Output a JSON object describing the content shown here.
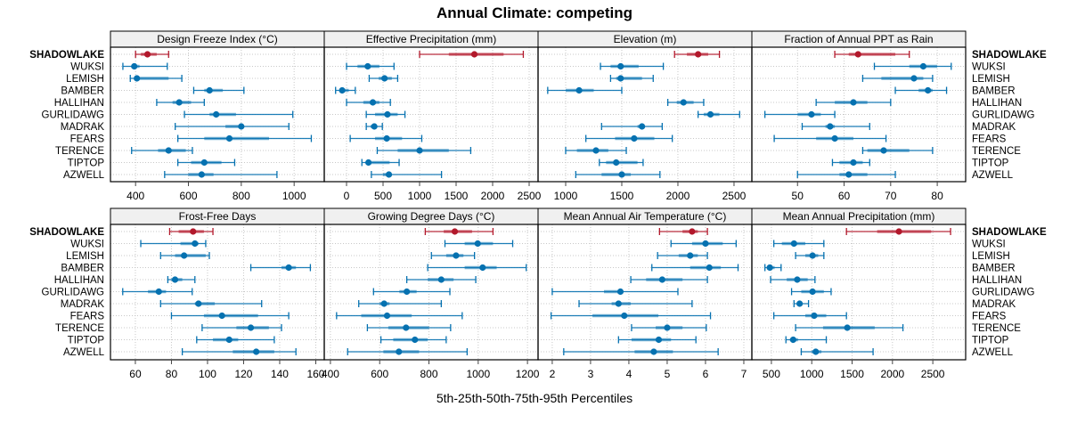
{
  "chart_data": {
    "type": "dotplot-percentile-intervals",
    "title": "Annual Climate: competing",
    "xlabel": "5th-25th-50th-75th-95th Percentiles",
    "colors": {
      "highlight": "#B2182B",
      "default": "#0571B0",
      "strip_bg": "#F0F0F0",
      "grid": "#C8C8C8",
      "frame": "#000000"
    },
    "highlight_category": "SHADOWLAKE",
    "categories": [
      "SHADOWLAKE",
      "WUKSI",
      "LEMISH",
      "BAMBER",
      "HALLIHAN",
      "GURLIDAWG",
      "MADRAK",
      "FEARS",
      "TERENCE",
      "TIPTOP",
      "AZWELL"
    ],
    "panels": [
      {
        "title": "Design Freeze Index (°C)",
        "xlim": [
          305,
          1114
        ],
        "ticks": [
          400,
          600,
          800,
          1000
        ],
        "series": [
          {
            "name": "SHADOWLAKE",
            "p5": 400,
            "p25": 420,
            "p50": 445,
            "p75": 480,
            "p95": 525
          },
          {
            "name": "WUKSI",
            "p5": 352,
            "p25": 385,
            "p50": 395,
            "p75": 415,
            "p95": 520
          },
          {
            "name": "LEMISH",
            "p5": 380,
            "p25": 395,
            "p50": 405,
            "p75": 525,
            "p95": 575
          },
          {
            "name": "BAMBER",
            "p5": 620,
            "p25": 660,
            "p50": 680,
            "p75": 730,
            "p95": 810
          },
          {
            "name": "HALLIHAN",
            "p5": 480,
            "p25": 540,
            "p50": 565,
            "p75": 610,
            "p95": 660
          },
          {
            "name": "GURLIDAWG",
            "p5": 585,
            "p25": 680,
            "p50": 705,
            "p75": 780,
            "p95": 995
          },
          {
            "name": "MADRAK",
            "p5": 550,
            "p25": 740,
            "p50": 800,
            "p75": 800,
            "p95": 980
          },
          {
            "name": "FEARS",
            "p5": 560,
            "p25": 660,
            "p50": 755,
            "p75": 905,
            "p95": 1065
          },
          {
            "name": "TERENCE",
            "p5": 385,
            "p25": 485,
            "p50": 525,
            "p75": 590,
            "p95": 615
          },
          {
            "name": "TIPTOP",
            "p5": 560,
            "p25": 610,
            "p50": 660,
            "p75": 725,
            "p95": 775
          },
          {
            "name": "AZWELL",
            "p5": 510,
            "p25": 600,
            "p50": 650,
            "p75": 695,
            "p95": 935
          }
        ]
      },
      {
        "title": "Effective Precipitation (mm)",
        "xlim": [
          -305,
          2622
        ],
        "ticks": [
          0,
          500,
          1000,
          1500,
          2000,
          2500
        ],
        "series": [
          {
            "name": "SHADOWLAKE",
            "p5": 1000,
            "p25": 1400,
            "p50": 1750,
            "p75": 2150,
            "p95": 2420
          },
          {
            "name": "WUKSI",
            "p5": 0,
            "p25": 150,
            "p50": 290,
            "p75": 450,
            "p95": 650
          },
          {
            "name": "LEMISH",
            "p5": 310,
            "p25": 440,
            "p50": 520,
            "p75": 620,
            "p95": 700
          },
          {
            "name": "BAMBER",
            "p5": -150,
            "p25": -80,
            "p50": -60,
            "p75": 30,
            "p95": 120
          },
          {
            "name": "HALLIHAN",
            "p5": 0,
            "p25": 230,
            "p50": 360,
            "p75": 450,
            "p95": 600
          },
          {
            "name": "GURLIDAWG",
            "p5": 270,
            "p25": 390,
            "p50": 560,
            "p75": 700,
            "p95": 800
          },
          {
            "name": "MADRAK",
            "p5": 270,
            "p25": 330,
            "p50": 380,
            "p75": 410,
            "p95": 490
          },
          {
            "name": "FEARS",
            "p5": 50,
            "p25": 390,
            "p50": 550,
            "p75": 760,
            "p95": 1030
          },
          {
            "name": "TERENCE",
            "p5": 420,
            "p25": 700,
            "p50": 1000,
            "p75": 1400,
            "p95": 1700
          },
          {
            "name": "TIPTOP",
            "p5": 210,
            "p25": 270,
            "p50": 300,
            "p75": 590,
            "p95": 720
          },
          {
            "name": "AZWELL",
            "p5": 340,
            "p25": 500,
            "p50": 580,
            "p75": 600,
            "p95": 1300
          }
        ]
      },
      {
        "title": "Elevation (m)",
        "xlim": [
          754,
          2659
        ],
        "ticks": [
          1000,
          1500,
          2000,
          2500
        ],
        "series": [
          {
            "name": "SHADOWLAKE",
            "p5": 1970,
            "p25": 2080,
            "p50": 2180,
            "p75": 2270,
            "p95": 2370
          },
          {
            "name": "WUKSI",
            "p5": 1310,
            "p25": 1400,
            "p50": 1490,
            "p75": 1650,
            "p95": 1870
          },
          {
            "name": "LEMISH",
            "p5": 1400,
            "p25": 1450,
            "p50": 1490,
            "p75": 1680,
            "p95": 1780
          },
          {
            "name": "BAMBER",
            "p5": 840,
            "p25": 1000,
            "p50": 1120,
            "p75": 1250,
            "p95": 1500
          },
          {
            "name": "HALLIHAN",
            "p5": 1910,
            "p25": 1990,
            "p50": 2050,
            "p75": 2140,
            "p95": 2230
          },
          {
            "name": "GURLIDAWG",
            "p5": 2180,
            "p25": 2230,
            "p50": 2290,
            "p75": 2370,
            "p95": 2550
          },
          {
            "name": "MADRAK",
            "p5": 1320,
            "p25": 1640,
            "p50": 1680,
            "p75": 1700,
            "p95": 1860
          },
          {
            "name": "FEARS",
            "p5": 1180,
            "p25": 1440,
            "p50": 1610,
            "p75": 1790,
            "p95": 1950
          },
          {
            "name": "TERENCE",
            "p5": 1000,
            "p25": 1100,
            "p50": 1270,
            "p75": 1380,
            "p95": 1540
          },
          {
            "name": "TIPTOP",
            "p5": 1300,
            "p25": 1360,
            "p50": 1450,
            "p75": 1640,
            "p95": 1690
          },
          {
            "name": "AZWELL",
            "p5": 1090,
            "p25": 1320,
            "p50": 1500,
            "p75": 1580,
            "p95": 1840
          }
        ]
      },
      {
        "title": "Fraction of Annual PPT as Rain",
        "xlim": [
          40.2,
          86.1
        ],
        "ticks": [
          50,
          60,
          70,
          80
        ],
        "series": [
          {
            "name": "SHADOWLAKE",
            "p5": 58,
            "p25": 61,
            "p50": 63,
            "p75": 71,
            "p95": 74
          },
          {
            "name": "WUKSI",
            "p5": 66.5,
            "p25": 74,
            "p50": 77,
            "p75": 80,
            "p95": 83
          },
          {
            "name": "LEMISH",
            "p5": 64,
            "p25": 68,
            "p50": 75,
            "p75": 77,
            "p95": 79
          },
          {
            "name": "BAMBER",
            "p5": 71,
            "p25": 76,
            "p50": 78,
            "p75": 79,
            "p95": 82
          },
          {
            "name": "HALLIHAN",
            "p5": 54,
            "p25": 58,
            "p50": 62,
            "p75": 65,
            "p95": 70
          },
          {
            "name": "GURLIDAWG",
            "p5": 43,
            "p25": 50,
            "p50": 53,
            "p75": 55,
            "p95": 58
          },
          {
            "name": "MADRAK",
            "p5": 51,
            "p25": 56,
            "p50": 57,
            "p75": 58,
            "p95": 65.5
          },
          {
            "name": "FEARS",
            "p5": 45,
            "p25": 54,
            "p50": 58,
            "p75": 62,
            "p95": 69
          },
          {
            "name": "TERENCE",
            "p5": 64,
            "p25": 65,
            "p50": 68.5,
            "p75": 74,
            "p95": 79
          },
          {
            "name": "TIPTOP",
            "p5": 57.5,
            "p25": 59,
            "p50": 62,
            "p75": 64,
            "p95": 65.5
          },
          {
            "name": "AZWELL",
            "p5": 50,
            "p25": 59,
            "p50": 61,
            "p75": 65,
            "p95": 71
          }
        ]
      },
      {
        "title": "Frost-Free Days",
        "xlim": [
          46.2,
          164.7
        ],
        "ticks": [
          60,
          80,
          100,
          120,
          140,
          160
        ],
        "series": [
          {
            "name": "SHADOWLAKE",
            "p5": 79,
            "p25": 84,
            "p50": 92,
            "p75": 98,
            "p95": 103
          },
          {
            "name": "WUKSI",
            "p5": 63,
            "p25": 85,
            "p50": 93,
            "p75": 95,
            "p95": 99
          },
          {
            "name": "LEMISH",
            "p5": 74,
            "p25": 82,
            "p50": 87,
            "p75": 99,
            "p95": 101
          },
          {
            "name": "BAMBER",
            "p5": 124,
            "p25": 141,
            "p50": 145,
            "p75": 149,
            "p95": 157
          },
          {
            "name": "HALLIHAN",
            "p5": 78,
            "p25": 80,
            "p50": 82,
            "p75": 86,
            "p95": 93
          },
          {
            "name": "GURLIDAWG",
            "p5": 53,
            "p25": 67,
            "p50": 73,
            "p75": 77,
            "p95": 91.5
          },
          {
            "name": "MADRAK",
            "p5": 74,
            "p25": 93,
            "p50": 95,
            "p75": 104,
            "p95": 130
          },
          {
            "name": "FEARS",
            "p5": 80,
            "p25": 98,
            "p50": 108,
            "p75": 128,
            "p95": 145
          },
          {
            "name": "TERENCE",
            "p5": 97,
            "p25": 116,
            "p50": 124,
            "p75": 134,
            "p95": 141
          },
          {
            "name": "TIPTOP",
            "p5": 94,
            "p25": 103,
            "p50": 112,
            "p75": 117,
            "p95": 137
          },
          {
            "name": "AZWELL",
            "p5": 86,
            "p25": 114,
            "p50": 127,
            "p75": 137,
            "p95": 149
          }
        ]
      },
      {
        "title": "Growing Degree Days (°C)",
        "xlim": [
          375,
          1243
        ],
        "ticks": [
          400,
          600,
          800,
          1000,
          1200
        ],
        "series": [
          {
            "name": "SHADOWLAKE",
            "p5": 785,
            "p25": 860,
            "p50": 905,
            "p75": 975,
            "p95": 1060
          },
          {
            "name": "WUKSI",
            "p5": 865,
            "p25": 945,
            "p50": 998,
            "p75": 1060,
            "p95": 1140
          },
          {
            "name": "LEMISH",
            "p5": 810,
            "p25": 870,
            "p50": 910,
            "p75": 940,
            "p95": 985
          },
          {
            "name": "BAMBER",
            "p5": 795,
            "p25": 945,
            "p50": 1018,
            "p75": 1075,
            "p95": 1195
          },
          {
            "name": "HALLIHAN",
            "p5": 710,
            "p25": 795,
            "p50": 850,
            "p75": 900,
            "p95": 990
          },
          {
            "name": "GURLIDAWG",
            "p5": 575,
            "p25": 680,
            "p50": 710,
            "p75": 750,
            "p95": 885
          },
          {
            "name": "MADRAK",
            "p5": 515,
            "p25": 600,
            "p50": 618,
            "p75": 640,
            "p95": 850
          },
          {
            "name": "FEARS",
            "p5": 425,
            "p25": 525,
            "p50": 630,
            "p75": 730,
            "p95": 935
          },
          {
            "name": "TERENCE",
            "p5": 550,
            "p25": 635,
            "p50": 707,
            "p75": 800,
            "p95": 888
          },
          {
            "name": "TIPTOP",
            "p5": 605,
            "p25": 655,
            "p50": 743,
            "p75": 795,
            "p95": 870
          },
          {
            "name": "AZWELL",
            "p5": 470,
            "p25": 615,
            "p50": 678,
            "p75": 760,
            "p95": 955
          }
        ]
      },
      {
        "title": "Mean Annual Air Temperature (°C)",
        "xlim": [
          1.63,
          7.21
        ],
        "ticks": [
          2,
          3,
          4,
          5,
          6,
          7
        ],
        "series": [
          {
            "name": "SHADOWLAKE",
            "p5": 4.8,
            "p25": 5.4,
            "p50": 5.65,
            "p75": 5.8,
            "p95": 6.05
          },
          {
            "name": "WUKSI",
            "p5": 5.1,
            "p25": 5.65,
            "p50": 6.0,
            "p75": 6.45,
            "p95": 6.8
          },
          {
            "name": "LEMISH",
            "p5": 4.75,
            "p25": 5.3,
            "p50": 5.6,
            "p75": 5.8,
            "p95": 6.05
          },
          {
            "name": "BAMBER",
            "p5": 4.6,
            "p25": 5.6,
            "p50": 6.1,
            "p75": 6.4,
            "p95": 6.85
          },
          {
            "name": "HALLIHAN",
            "p5": 4.05,
            "p25": 4.45,
            "p50": 4.87,
            "p75": 5.4,
            "p95": 6.05
          },
          {
            "name": "GURLIDAWG",
            "p5": 2.0,
            "p25": 3.35,
            "p50": 3.78,
            "p75": 3.8,
            "p95": 5.28
          },
          {
            "name": "MADRAK",
            "p5": 2.7,
            "p25": 3.55,
            "p50": 3.73,
            "p75": 4.05,
            "p95": 5.65
          },
          {
            "name": "FEARS",
            "p5": 1.97,
            "p25": 3.05,
            "p50": 3.88,
            "p75": 4.77,
            "p95": 6.13
          },
          {
            "name": "TERENCE",
            "p5": 4.07,
            "p25": 4.7,
            "p50": 5.0,
            "p75": 5.4,
            "p95": 6.02
          },
          {
            "name": "TIPTOP",
            "p5": 3.73,
            "p25": 4.07,
            "p50": 4.78,
            "p75": 5.1,
            "p95": 5.75
          },
          {
            "name": "AZWELL",
            "p5": 2.3,
            "p25": 4.15,
            "p50": 4.65,
            "p75": 5.15,
            "p95": 6.33
          }
        ]
      },
      {
        "title": "Mean Annual Precipitation (mm)",
        "xlim": [
          258,
          2907
        ],
        "ticks": [
          500,
          1000,
          1500,
          2000,
          2500
        ],
        "series": [
          {
            "name": "SHADOWLAKE",
            "p5": 1430,
            "p25": 1810,
            "p50": 2080,
            "p75": 2480,
            "p95": 2720
          },
          {
            "name": "WUKSI",
            "p5": 530,
            "p25": 630,
            "p50": 780,
            "p75": 920,
            "p95": 1150
          },
          {
            "name": "LEMISH",
            "p5": 800,
            "p25": 920,
            "p50": 1010,
            "p75": 1080,
            "p95": 1150
          },
          {
            "name": "BAMBER",
            "p5": 420,
            "p25": 450,
            "p50": 480,
            "p75": 540,
            "p95": 620
          },
          {
            "name": "HALLIHAN",
            "p5": 490,
            "p25": 690,
            "p50": 820,
            "p75": 950,
            "p95": 1040
          },
          {
            "name": "GURLIDAWG",
            "p5": 750,
            "p25": 870,
            "p50": 1010,
            "p75": 1150,
            "p95": 1240
          },
          {
            "name": "MADRAK",
            "p5": 780,
            "p25": 820,
            "p50": 850,
            "p75": 880,
            "p95": 960
          },
          {
            "name": "FEARS",
            "p5": 530,
            "p25": 920,
            "p50": 1030,
            "p75": 1180,
            "p95": 1430
          },
          {
            "name": "TERENCE",
            "p5": 800,
            "p25": 1140,
            "p50": 1440,
            "p75": 1780,
            "p95": 2130
          },
          {
            "name": "TIPTOP",
            "p5": 680,
            "p25": 730,
            "p50": 770,
            "p75": 830,
            "p95": 1180
          },
          {
            "name": "AZWELL",
            "p5": 870,
            "p25": 1000,
            "p50": 1050,
            "p75": 1120,
            "p95": 1760
          }
        ]
      }
    ]
  }
}
